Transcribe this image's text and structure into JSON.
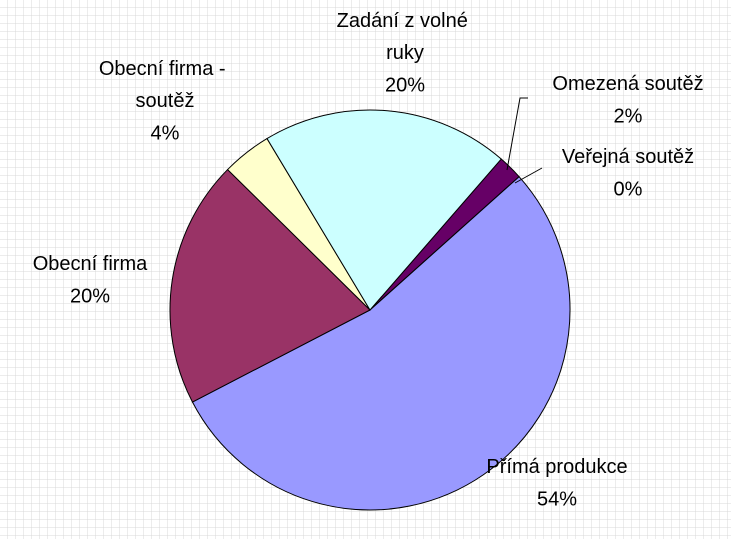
{
  "chart_data": {
    "type": "pie",
    "categories": [
      "Omezená soutěž",
      "Veřejná soutěž",
      "Přímá produkce",
      "Obecní firma",
      "Obecní firma - soutěž",
      "Zadání z volné ruky"
    ],
    "values": [
      2,
      0,
      54,
      20,
      4,
      20
    ],
    "value_labels": [
      "2%",
      "0%",
      "54%",
      "20%",
      "4%",
      "20%"
    ],
    "colors": [
      "#660066",
      "#ff8080",
      "#9999ff",
      "#993366",
      "#ffffcc",
      "#ccffff"
    ]
  }
}
